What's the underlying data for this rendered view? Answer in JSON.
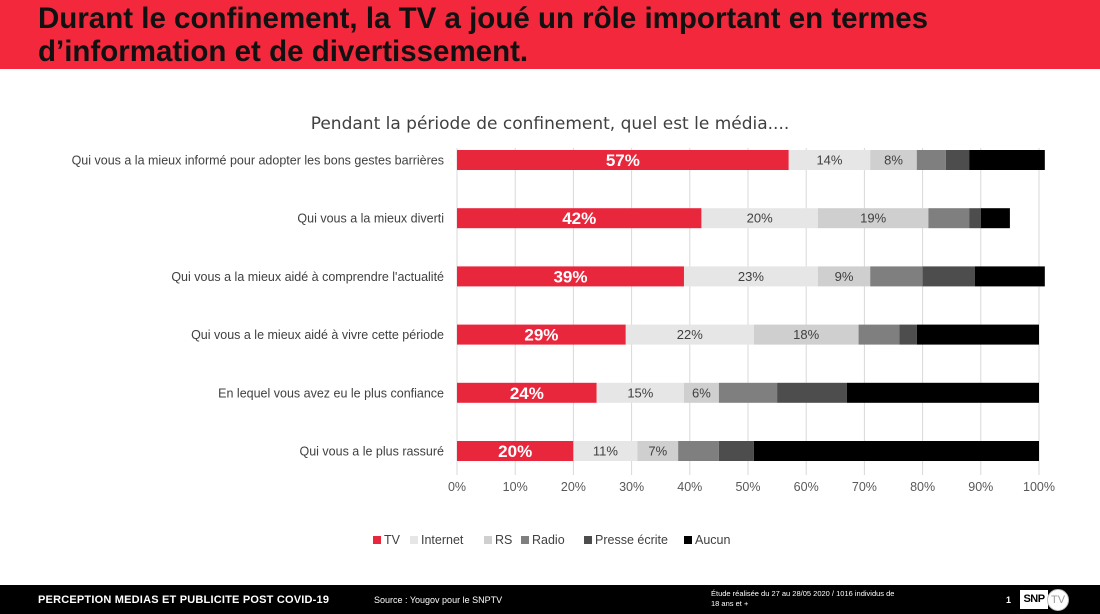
{
  "header": {
    "title": "Durant le confinement, la TV a joué un rôle important en termes d’information et de divertissement."
  },
  "colors": {
    "header_bg": "#f4283c",
    "tv": "#e8273d",
    "internet": "#e6e6e6",
    "rs": "#cfcfcf",
    "radio": "#7f7f7f",
    "presse": "#4d4d4d",
    "aucun": "#000000"
  },
  "chart_data": {
    "type": "bar",
    "orientation": "horizontal",
    "stacked": "percent",
    "title": "Pendant la période de confinement, quel est le média....",
    "categories": [
      "Qui vous a la mieux informé pour adopter les bons gestes barrières",
      "Qui vous a la mieux diverti",
      "Qui vous a la mieux aidé à comprendre l'actualité",
      "Qui vous a le mieux aidé à vivre cette période",
      "En lequel vous avez eu le plus confiance",
      "Qui vous a le plus rassuré"
    ],
    "series": [
      {
        "name": "TV",
        "color": "#e8273d",
        "values": [
          57,
          42,
          39,
          29,
          24,
          20
        ],
        "labels": [
          "57%",
          "42%",
          "39%",
          "29%",
          "24%",
          "20%"
        ]
      },
      {
        "name": "Internet",
        "color": "#e6e6e6",
        "values": [
          14,
          20,
          23,
          22,
          15,
          11
        ],
        "labels": [
          "14%",
          "20%",
          "23%",
          "22%",
          "15%",
          "11%"
        ]
      },
      {
        "name": "RS",
        "color": "#cfcfcf",
        "values": [
          8,
          19,
          9,
          18,
          6,
          7
        ],
        "labels": [
          "8%",
          "19%",
          "9%",
          "18%",
          "6%",
          "7%"
        ]
      },
      {
        "name": "Radio",
        "color": "#7f7f7f",
        "values": [
          5,
          7,
          9,
          7,
          10,
          7
        ]
      },
      {
        "name": "Presse écrite",
        "color": "#4d4d4d",
        "values": [
          4,
          2,
          9,
          3,
          12,
          6
        ]
      },
      {
        "name": "Aucun",
        "color": "#000000",
        "values": [
          13,
          5,
          12,
          21,
          33,
          49
        ]
      }
    ],
    "xlim": [
      0,
      100
    ],
    "ticks": [
      "0%",
      "10%",
      "20%",
      "30%",
      "40%",
      "50%",
      "60%",
      "70%",
      "80%",
      "90%",
      "100%"
    ],
    "grid": true,
    "legend": "bottom"
  },
  "footer": {
    "title": "PERCEPTION MEDIAS ET PUBLICITE POST COVID-19",
    "source": "Source : Yougov pour le SNPTV",
    "study_line1": "Étude réalisée du 27 au 28/05 2020 / 1016 individus de",
    "study_line2": "18 ans et +",
    "page": "1",
    "logo_text": "SNP",
    "logo_suffix": "TV"
  }
}
